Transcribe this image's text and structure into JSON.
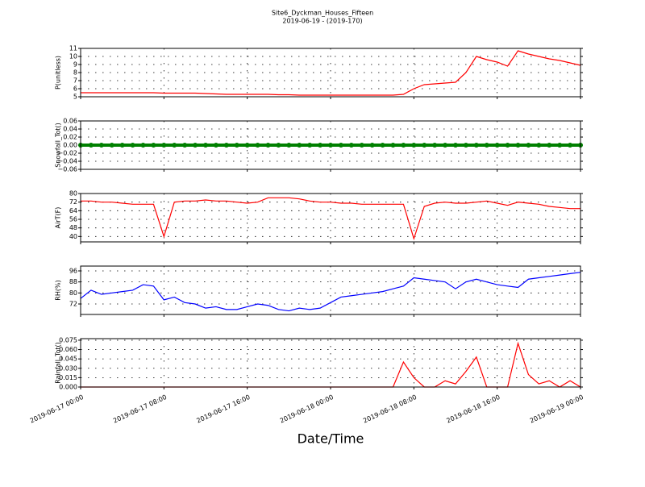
{
  "title": "Site6_Dyckman_Houses_Fifteen",
  "subtitle": "2019-06-19 - (2019-170)",
  "x_axis": {
    "label": "Date/Time",
    "xlim": [
      "2019-06-17 00:00",
      "2019-06-19 00:00"
    ],
    "xticks": [
      "2019-06-17 00:00",
      "2019-06-17 08:00",
      "2019-06-17 16:00",
      "2019-06-18 00:00",
      "2019-06-18 08:00",
      "2019-06-18 16:00",
      "2019-06-19 00:00"
    ],
    "x": [
      "2019-06-17 00:00",
      "2019-06-17 01:00",
      "2019-06-17 02:00",
      "2019-06-17 03:00",
      "2019-06-17 04:00",
      "2019-06-17 05:00",
      "2019-06-17 06:00",
      "2019-06-17 07:00",
      "2019-06-17 08:00",
      "2019-06-17 09:00",
      "2019-06-17 10:00",
      "2019-06-17 11:00",
      "2019-06-17 12:00",
      "2019-06-17 13:00",
      "2019-06-17 14:00",
      "2019-06-17 15:00",
      "2019-06-17 16:00",
      "2019-06-17 17:00",
      "2019-06-17 18:00",
      "2019-06-17 19:00",
      "2019-06-17 20:00",
      "2019-06-17 21:00",
      "2019-06-17 22:00",
      "2019-06-17 23:00",
      "2019-06-18 00:00",
      "2019-06-18 01:00",
      "2019-06-18 02:00",
      "2019-06-18 03:00",
      "2019-06-18 04:00",
      "2019-06-18 05:00",
      "2019-06-18 06:00",
      "2019-06-18 07:00",
      "2019-06-18 08:00",
      "2019-06-18 09:00",
      "2019-06-18 10:00",
      "2019-06-18 11:00",
      "2019-06-18 12:00",
      "2019-06-18 13:00",
      "2019-06-18 14:00",
      "2019-06-18 15:00",
      "2019-06-18 16:00",
      "2019-06-18 17:00",
      "2019-06-18 18:00",
      "2019-06-18 19:00",
      "2019-06-18 20:00",
      "2019-06-18 21:00",
      "2019-06-18 22:00",
      "2019-06-18 23:00",
      "2019-06-19 00:00"
    ]
  },
  "chart_data": [
    {
      "type": "line",
      "ylabel": "P(unitless)",
      "ylim": [
        5,
        11
      ],
      "yticks": [
        5,
        6,
        7,
        8,
        9,
        10,
        11
      ],
      "grid": true,
      "series": [
        {
          "color": "#ff0000",
          "values": [
            5.5,
            5.5,
            5.5,
            5.5,
            5.5,
            5.5,
            5.5,
            5.5,
            5.45,
            5.45,
            5.45,
            5.45,
            5.4,
            5.35,
            5.3,
            5.3,
            5.3,
            5.3,
            5.3,
            5.25,
            5.25,
            5.2,
            5.2,
            5.2,
            5.2,
            5.2,
            5.2,
            5.2,
            5.2,
            5.2,
            5.2,
            5.3,
            6.0,
            6.5,
            6.6,
            6.7,
            6.8,
            8.0,
            10.0,
            9.6,
            9.3,
            8.8,
            10.7,
            10.3,
            10.0,
            9.7,
            9.5,
            9.2,
            8.9
          ]
        }
      ]
    },
    {
      "type": "scatter",
      "ylabel": "Snowfall_Tot()",
      "ylim": [
        -0.06,
        0.06
      ],
      "yticks": [
        {
          "value": -0.06,
          "label": "−0.06"
        },
        {
          "value": -0.04,
          "label": "−0.04"
        },
        {
          "value": -0.02,
          "label": "−0.02"
        },
        {
          "value": 0,
          "label": "0.00"
        },
        {
          "value": 0.02,
          "label": "0.02"
        },
        {
          "value": 0.04,
          "label": "0.04"
        },
        {
          "value": 0.06,
          "label": "0.06"
        }
      ],
      "grid": true,
      "series": [
        {
          "color": "#008000",
          "values": [
            0,
            0,
            0,
            0,
            0,
            0,
            0,
            0,
            0,
            0,
            0,
            0,
            0,
            0,
            0,
            0,
            0,
            0,
            0,
            0,
            0,
            0,
            0,
            0,
            0,
            0,
            0,
            0,
            0,
            0,
            0,
            0,
            0,
            0,
            0,
            0,
            0,
            0,
            0,
            0,
            0,
            0,
            0,
            0,
            0,
            0,
            0,
            0,
            0
          ]
        }
      ]
    },
    {
      "type": "line",
      "ylabel": "AirT(F)",
      "ylim": [
        35,
        80
      ],
      "yticks": [
        40,
        48,
        56,
        64,
        72,
        80
      ],
      "grid": true,
      "series": [
        {
          "color": "#ff0000",
          "values": [
            73,
            73,
            72,
            72,
            71,
            70,
            70,
            70,
            40,
            72,
            73,
            73,
            74,
            73,
            73,
            72,
            71,
            72,
            76,
            76,
            76,
            75,
            73,
            72,
            72,
            71,
            71,
            70,
            70,
            70,
            70,
            70,
            38,
            68,
            71,
            72,
            71,
            71,
            72,
            73,
            71,
            69,
            72,
            71,
            70,
            68,
            67,
            66,
            66
          ]
        }
      ]
    },
    {
      "type": "line",
      "ylabel": "RH(%)",
      "ylim": [
        64.4,
        99.5
      ],
      "yticks": [
        72,
        80,
        88,
        96
      ],
      "grid": true,
      "series": [
        {
          "color": "#0000ff",
          "values": [
            76,
            82,
            79,
            80,
            81,
            82,
            86,
            85,
            75,
            77,
            73,
            72,
            69,
            70,
            68,
            68,
            70,
            72,
            71,
            68,
            67,
            69,
            68,
            69,
            73,
            77,
            78,
            79,
            80,
            81,
            83,
            85,
            91,
            90,
            89,
            88,
            83,
            88,
            90,
            88,
            86,
            85,
            84,
            90,
            91,
            92,
            93,
            94,
            95
          ]
        }
      ]
    },
    {
      "type": "line",
      "ylabel": "Rainfall_Tot()",
      "ylim": [
        0,
        0.0775
      ],
      "yticks": [
        {
          "value": 0,
          "label": "0.000"
        },
        {
          "value": 0.015,
          "label": "0.015"
        },
        {
          "value": 0.03,
          "label": "0.030"
        },
        {
          "value": 0.045,
          "label": "0.045"
        },
        {
          "value": 0.06,
          "label": "0.060"
        },
        {
          "value": 0.075,
          "label": "0.075"
        }
      ],
      "grid": true,
      "series": [
        {
          "color": "#ff0000",
          "values": [
            0,
            0,
            0,
            0,
            0,
            0,
            0,
            0,
            0,
            0,
            0,
            0,
            0,
            0,
            0,
            0,
            0,
            0,
            0,
            0,
            0,
            0,
            0,
            0,
            0,
            0,
            0,
            0,
            0,
            0,
            0,
            0.04,
            0.015,
            0,
            0,
            0.01,
            0.005,
            0.025,
            0.048,
            0,
            0,
            0,
            0.07,
            0.02,
            0.005,
            0.01,
            0,
            0.01,
            0
          ]
        }
      ]
    }
  ]
}
